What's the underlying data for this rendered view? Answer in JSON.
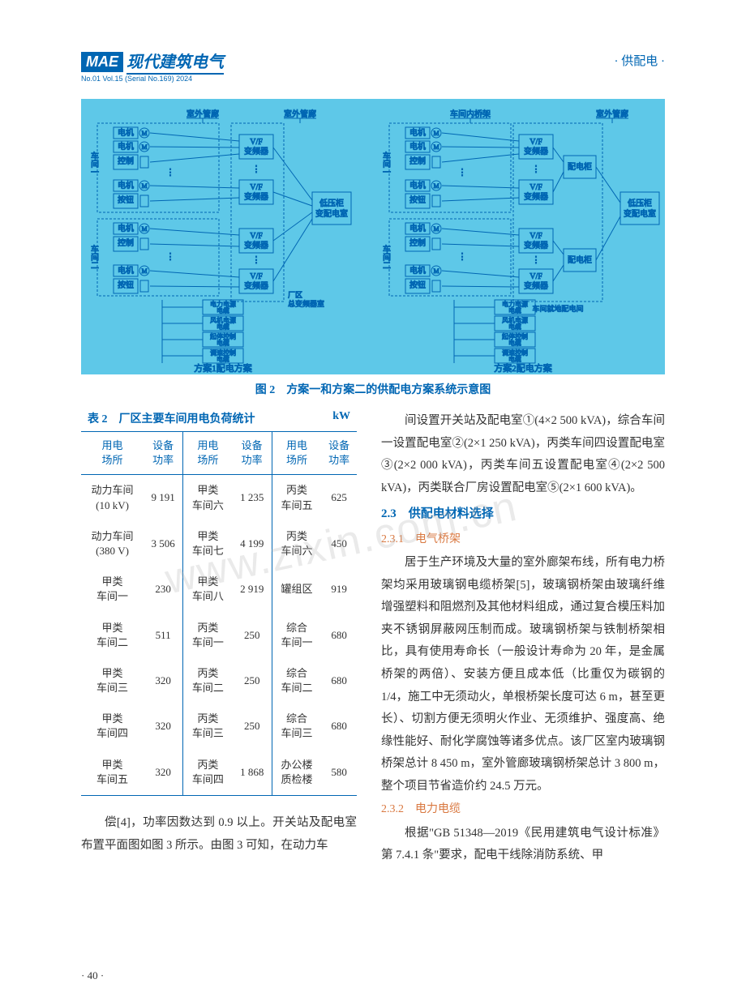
{
  "header": {
    "logo_mark": "MAE",
    "logo_title": "现代建筑电气",
    "logo_sub": "No.01 Vol.15 (Serial No.169) 2024",
    "section_label": "· 供配电 ·"
  },
  "diagram": {
    "background": "#5ec8e8",
    "line_color": "#0066b3",
    "text_color": "#0066b3",
    "caption": "图 2　方案一和方案二的供配电方案系统示意图",
    "label_outdoor_corridor": "室外管廊",
    "label_outdoor_corridor2": "室外管廊",
    "label_workshop_bridge": "车间内桥架",
    "label_outdoor_corridor3": "室外管廊",
    "label_motor": "电机",
    "label_control_btn": "控制按钮",
    "label_vf": "V/F\n变频器",
    "label_dist_cab": "配电柜",
    "label_lv_room": "低压柜\n变配电室",
    "label_plant_trans": "厂区\n总变频器室",
    "label_workshop1": "车间一",
    "label_workshop2": "车间二",
    "label_power_cable": "电力电源\n电缆",
    "label_fan_cable": "风机电源\n电缆",
    "label_stop_cable": "起停控制\n电缆",
    "label_speed_cable": "调速控制\n电缆",
    "label_scheme1": "方案1配电方案",
    "label_scheme2": "方案2配电方案",
    "label_onsite_room": "车间就地配电间"
  },
  "table": {
    "caption_main": "表 2　厂区主要车间用电负荷统计",
    "caption_unit": "kW",
    "columns": [
      "用电\n场所",
      "设备\n功率",
      "用电\n场所",
      "设备\n功率",
      "用电\n场所",
      "设备\n功率"
    ],
    "rows": [
      [
        "动力车间\n(10 kV)",
        "9 191",
        "甲类\n车间六",
        "1 235",
        "丙类\n车间五",
        "625"
      ],
      [
        "动力车间\n(380 V)",
        "3 506",
        "甲类\n车间七",
        "4 199",
        "丙类\n车间六",
        "450"
      ],
      [
        "甲类\n车间一",
        "230",
        "甲类\n车间八",
        "2 919",
        "罐组区",
        "919"
      ],
      [
        "甲类\n车间二",
        "511",
        "丙类\n车间一",
        "250",
        "综合\n车间一",
        "680"
      ],
      [
        "甲类\n车间三",
        "320",
        "丙类\n车间二",
        "250",
        "综合\n车间二",
        "680"
      ],
      [
        "甲类\n车间四",
        "320",
        "丙类\n车间三",
        "250",
        "综合\n车间三",
        "680"
      ],
      [
        "甲类\n车间五",
        "320",
        "丙类\n车间四",
        "1 868",
        "办公楼\n质检楼",
        "580"
      ]
    ],
    "header_color": "#0066b3",
    "border_color": "#0066b3"
  },
  "left_tail": "偿[4]，功率因数达到 0.9 以上。开关站及配电室布置平面图如图 3 所示。由图 3 可知，在动力车",
  "right_body": {
    "para1": "间设置开关站及配电室①(4×2 500 kVA)，综合车间一设置配电室②(2×1 250 kVA)，丙类车间四设置配电室③(2×2 000 kVA)，丙类车间五设置配电室④(2×2 500 kVA)，丙类联合厂房设置配电室⑤(2×1 600 kVA)。",
    "h_23": "2.3　供配电材料选择",
    "h_231": "2.3.1　电气桥架",
    "para2": "居于生产环境及大量的室外廊架布线，所有电力桥架均采用玻璃钢电缆桥架[5]，玻璃钢桥架由玻璃纤维增强塑料和阻燃剂及其他材料组成，通过复合模压料加夹不锈钢屏蔽网压制而成。玻璃钢桥架与铁制桥架相比，具有使用寿命长（一般设计寿命为 20 年，是金属桥架的两倍）、安装方便且成本低（比重仅为碳钢的 1/4，施工中无须动火，单根桥架长度可达 6 m，甚至更长）、切割方便无须明火作业、无须维护、强度高、绝缘性能好、耐化学腐蚀等诸多优点。该厂区室内玻璃钢桥架总计 8 450 m，室外管廊玻璃钢桥架总计 3 800 m，整个项目节省造价约 24.5 万元。",
    "h_232": "2.3.2　电力电缆",
    "para3": "根据\"GB 51348—2019《民用建筑电气设计标准》第 7.4.1 条\"要求，配电干线除消防系统、甲"
  },
  "page_number": "· 40 ·",
  "watermark": "www.zixin.com.cn",
  "colors": {
    "brand_blue": "#0066b3",
    "accent_orange": "#d97840",
    "diagram_bg": "#5ec8e8",
    "text": "#333333",
    "bg": "#ffffff"
  }
}
